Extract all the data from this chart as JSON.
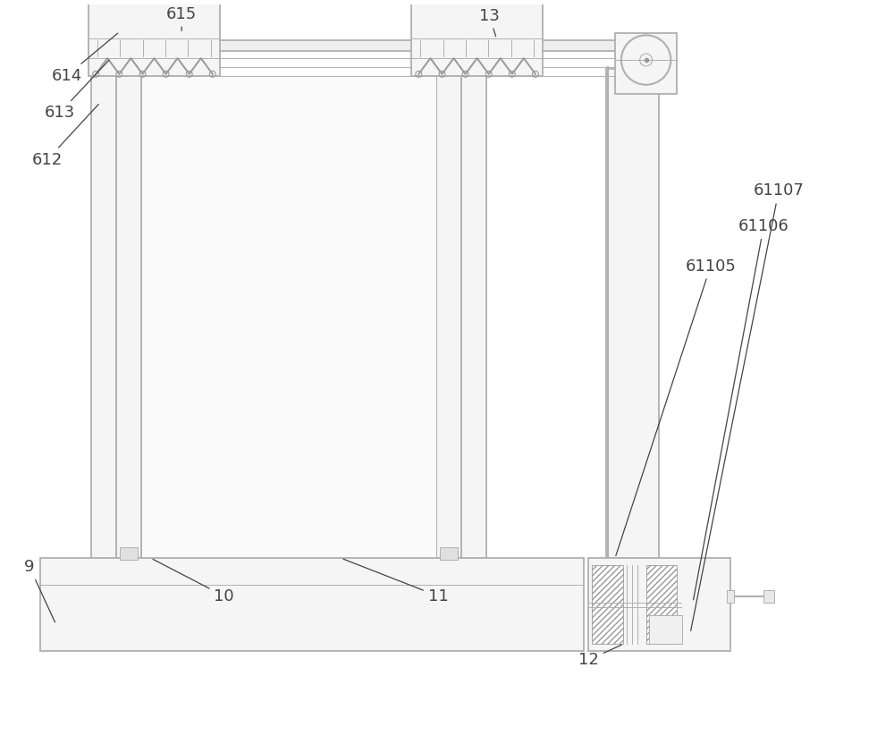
{
  "bg_color": "#ffffff",
  "lc": "#b0b0b0",
  "lc2": "#999999",
  "label_color": "#444444",
  "figsize": [
    10.0,
    8.41
  ],
  "dpi": 100,
  "lw_main": 1.3,
  "lw_thin": 0.7,
  "lw_thick": 1.8
}
